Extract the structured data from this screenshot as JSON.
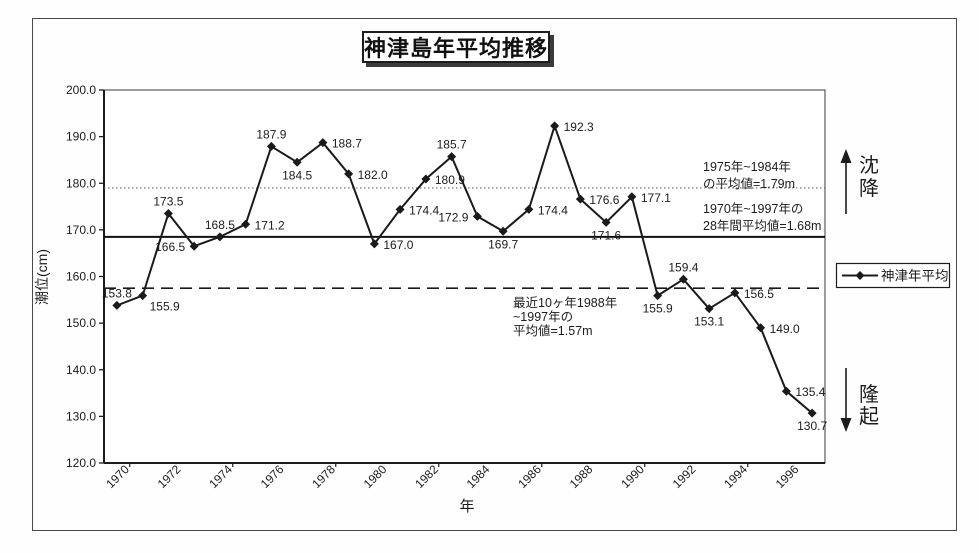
{
  "title": "神津島年平均推移",
  "colors": {
    "line": "#1a1a1a",
    "text": "#1c1c1c",
    "dotted_ref": "#6e6e6e",
    "solid_ref": "#111111",
    "dashed_ref": "#1a1a1a",
    "border": "#4a4a4a",
    "background": "#fefefe"
  },
  "chart_data": {
    "type": "line",
    "title": "神津島年平均推移",
    "xlabel": "年",
    "ylabel": "潮位(cm)",
    "ylim": [
      120.0,
      200.0
    ],
    "ytick_labels": [
      "200.0",
      "190.0",
      "180.0",
      "170.0",
      "160.0",
      "150.0",
      "140.0",
      "130.0",
      "120.0"
    ],
    "xtick_labels": [
      "1970",
      "1972",
      "1974",
      "1976",
      "1978",
      "1980",
      "1982",
      "1984",
      "1986",
      "1988",
      "1990",
      "1992",
      "1994",
      "1996"
    ],
    "years": [
      "1970",
      "1971",
      "1972",
      "1973",
      "1974",
      "1975",
      "1976",
      "1977",
      "1978",
      "1979",
      "1980",
      "1981",
      "1982",
      "1983",
      "1984",
      "1985",
      "1986",
      "1987",
      "1988",
      "1989",
      "1990",
      "1991",
      "1992",
      "1993",
      "1994",
      "1995",
      "1996",
      "1997"
    ],
    "series": [
      {
        "name": "神津年平均",
        "marker": "diamond",
        "values": [
          153.8,
          155.9,
          173.5,
          166.5,
          168.5,
          171.2,
          187.9,
          184.5,
          188.7,
          182.0,
          167.0,
          174.4,
          180.9,
          185.7,
          172.9,
          169.7,
          174.4,
          192.3,
          176.6,
          171.6,
          177.1,
          155.9,
          159.4,
          153.1,
          156.5,
          149.0,
          135.4,
          130.7
        ]
      }
    ],
    "label_placements": [
      "a",
      "br",
      "a",
      "l",
      "a",
      "r",
      "a",
      "b",
      "r",
      "r",
      "r",
      "r",
      "r",
      "a",
      "l",
      "b",
      "r",
      "r",
      "r",
      "b",
      "r",
      "b",
      "a",
      "b",
      "r",
      "r",
      "r",
      "b"
    ],
    "ref_lines": [
      {
        "value": 179.0,
        "style": "dotted",
        "label_lines": [
          "1975年~1984年",
          "の平均値=1.79m"
        ]
      },
      {
        "value": 168.5,
        "style": "solid",
        "label_lines": [
          "1970年~1997年の",
          "28年間平均値=1.68m"
        ]
      },
      {
        "value": 157.5,
        "style": "dashed",
        "label_lines": [
          "最近10ヶ年1988年",
          "~1997年の",
          "平均値=1.57m"
        ]
      }
    ],
    "legend": {
      "label": "神津年平均",
      "position": "right-middle",
      "marker": "diamond-line"
    },
    "side_annotations": {
      "up_arrow_label": "沈降",
      "down_arrow_label": "隆起"
    },
    "grid": "off"
  }
}
